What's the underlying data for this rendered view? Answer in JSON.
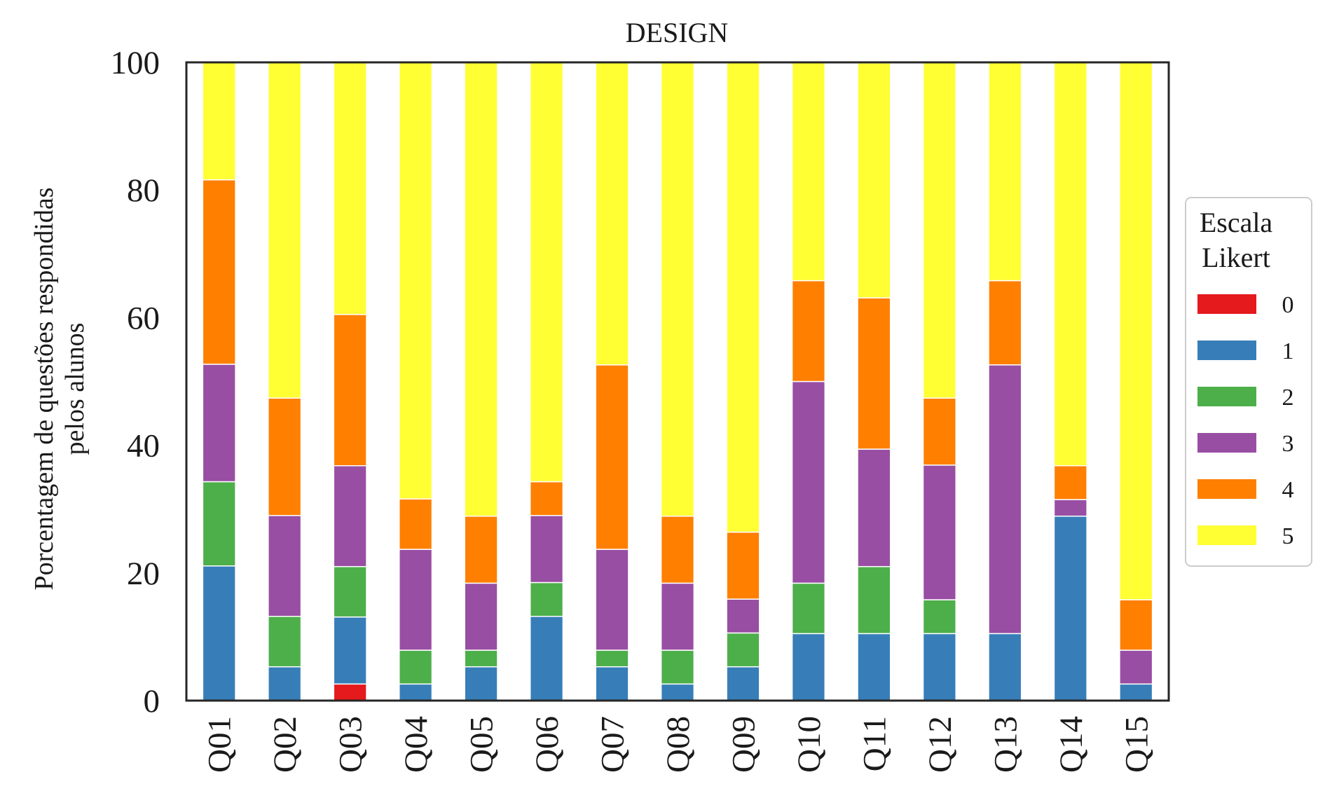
{
  "chart_data": {
    "type": "bar",
    "stacked": true,
    "title": "DESIGN",
    "ylabel_lines": [
      "Porcentagem de questões respondidas",
      "pelos alunos"
    ],
    "xlabel": "",
    "ylim": [
      0,
      100
    ],
    "yticks": [
      "0",
      "20",
      "40",
      "60",
      "80",
      "100"
    ],
    "grid": false,
    "categories": [
      "Q01",
      "Q02",
      "Q03",
      "Q04",
      "Q05",
      "Q06",
      "Q07",
      "Q08",
      "Q09",
      "Q10",
      "Q11",
      "Q12",
      "Q13",
      "Q14",
      "Q15"
    ],
    "legend": {
      "title_lines": [
        "Escala",
        "Likert"
      ],
      "placement": "right"
    },
    "series": [
      {
        "name": "0",
        "color": "#e41a1c",
        "values": [
          0,
          0,
          2.6,
          0,
          0,
          0,
          0,
          0,
          0,
          0,
          0,
          0,
          0,
          0,
          0
        ]
      },
      {
        "name": "1",
        "color": "#377eb8",
        "values": [
          21.1,
          5.3,
          10.5,
          2.6,
          5.3,
          13.2,
          5.3,
          2.6,
          5.3,
          10.5,
          10.5,
          10.5,
          10.5,
          28.9,
          2.6
        ]
      },
      {
        "name": "2",
        "color": "#4daf4a",
        "values": [
          13.2,
          7.9,
          7.9,
          5.3,
          2.6,
          5.3,
          2.6,
          5.3,
          5.3,
          7.9,
          10.5,
          5.3,
          0,
          0,
          0
        ]
      },
      {
        "name": "3",
        "color": "#984ea3",
        "values": [
          18.4,
          15.8,
          15.8,
          15.8,
          10.5,
          10.5,
          15.8,
          10.5,
          5.3,
          31.6,
          18.4,
          21.1,
          42.1,
          2.6,
          5.3
        ]
      },
      {
        "name": "4",
        "color": "#ff7f00",
        "values": [
          28.9,
          18.4,
          23.7,
          7.9,
          10.5,
          5.3,
          28.9,
          10.5,
          10.5,
          15.8,
          23.7,
          10.5,
          13.2,
          5.3,
          7.9
        ]
      },
      {
        "name": "5",
        "color": "#ffff33",
        "values": [
          18.4,
          52.6,
          39.5,
          68.4,
          71.1,
          65.8,
          47.4,
          71.1,
          73.7,
          34.2,
          36.8,
          52.6,
          34.2,
          63.2,
          84.2
        ]
      }
    ]
  }
}
